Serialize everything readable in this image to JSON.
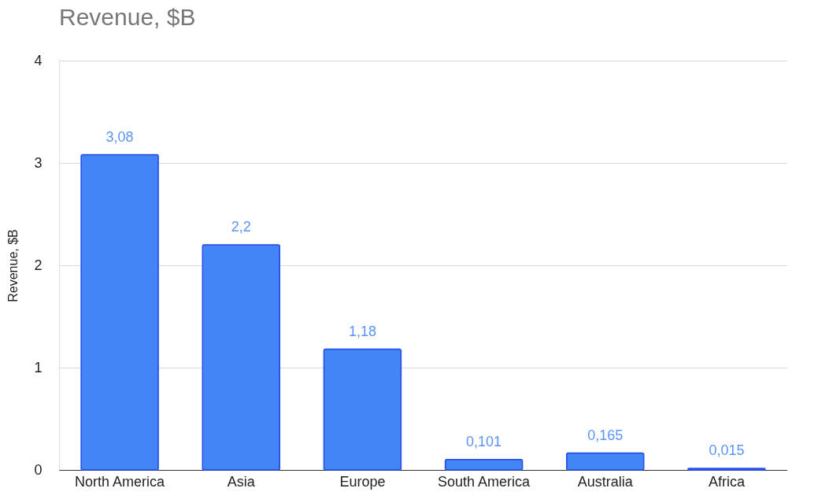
{
  "chart_data": {
    "type": "bar",
    "title": "Revenue, $B",
    "ylabel": "Revenue, $B",
    "categories": [
      "North America",
      "Asia",
      "Europe",
      "South America",
      "Australia",
      "Africa"
    ],
    "values": [
      3.08,
      2.2,
      1.18,
      0.101,
      0.165,
      0.015
    ],
    "value_labels": [
      "3,08",
      "2,2",
      "1,18",
      "0,101",
      "0,165",
      "0,015"
    ],
    "color": "#4285f4",
    "ylim": [
      0,
      4
    ],
    "yticks": [
      0,
      1,
      2,
      3,
      4
    ],
    "grid": "y"
  }
}
